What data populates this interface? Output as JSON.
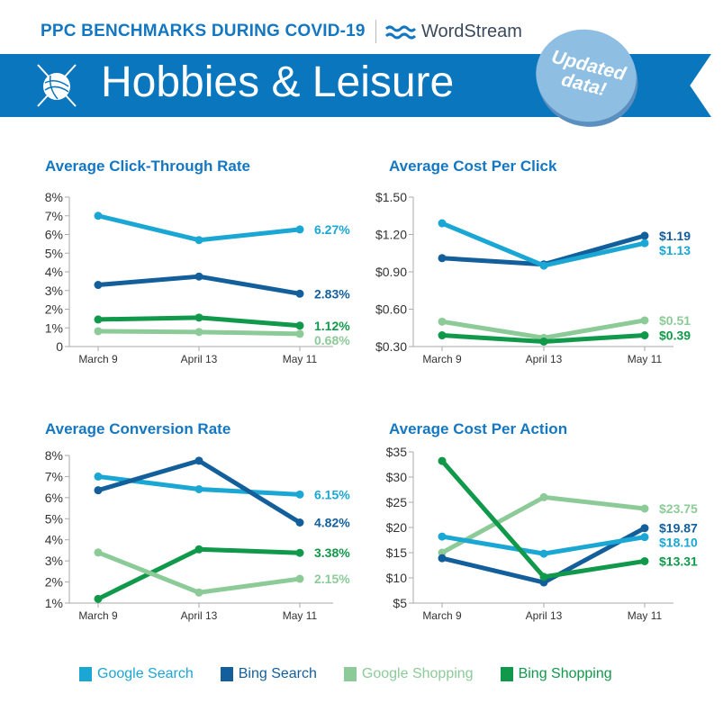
{
  "header": {
    "title": "PPC BENCHMARKS DURING COVID-19",
    "brand": "WordStream",
    "banner": "Hobbies & Leisure",
    "badge_line1": "Updated",
    "badge_line2": "data!"
  },
  "colors": {
    "google_search": "#1aa7d4",
    "bing_search": "#135f9b",
    "google_shopping": "#8ccb98",
    "bing_shopping": "#10994a",
    "accent": "#1477c2",
    "banner": "#0a76be"
  },
  "legend": [
    {
      "name": "Google Search",
      "color": "#1aa7d4"
    },
    {
      "name": "Bing Search",
      "color": "#135f9b"
    },
    {
      "name": "Google Shopping",
      "color": "#8ccb98"
    },
    {
      "name": "Bing Shopping",
      "color": "#10994a"
    }
  ],
  "chart_data": [
    {
      "type": "line",
      "title": "Average Click-Through Rate",
      "categories": [
        "March 9",
        "April 13",
        "May 11"
      ],
      "ylim": [
        0,
        8
      ],
      "yticks": [
        0,
        1,
        2,
        3,
        4,
        5,
        6,
        7,
        8
      ],
      "ytick_labels": [
        "0",
        "1%",
        "2%",
        "3%",
        "4%",
        "5%",
        "6%",
        "7%",
        "8%"
      ],
      "series": [
        {
          "name": "Google Search",
          "values": [
            7.0,
            5.7,
            6.27
          ],
          "end_label": "6.27%"
        },
        {
          "name": "Bing Search",
          "values": [
            3.3,
            3.75,
            2.83
          ],
          "end_label": "2.83%"
        },
        {
          "name": "Bing Shopping",
          "values": [
            1.45,
            1.55,
            1.12
          ],
          "end_label": "1.12%"
        },
        {
          "name": "Google Shopping",
          "values": [
            0.82,
            0.78,
            0.68
          ],
          "end_label": "0.68%"
        }
      ]
    },
    {
      "type": "line",
      "title": "Average Cost Per Click",
      "categories": [
        "March 9",
        "April 13",
        "May 11"
      ],
      "ylim": [
        0.3,
        1.5
      ],
      "yticks": [
        0.3,
        0.6,
        0.9,
        1.2,
        1.5
      ],
      "ytick_labels": [
        "$0.30",
        "$0.60",
        "$0.90",
        "$1.20",
        "$1.50"
      ],
      "series": [
        {
          "name": "Bing Search",
          "values": [
            1.01,
            0.96,
            1.19
          ],
          "end_label": "$1.19"
        },
        {
          "name": "Google Search",
          "values": [
            1.29,
            0.95,
            1.13
          ],
          "end_label": "$1.13"
        },
        {
          "name": "Google Shopping",
          "values": [
            0.5,
            0.37,
            0.51
          ],
          "end_label": "$0.51"
        },
        {
          "name": "Bing Shopping",
          "values": [
            0.39,
            0.34,
            0.39
          ],
          "end_label": "$0.39"
        }
      ]
    },
    {
      "type": "line",
      "title": "Average Conversion Rate",
      "categories": [
        "March 9",
        "April 13",
        "May 11"
      ],
      "ylim": [
        1,
        8
      ],
      "yticks": [
        1,
        2,
        3,
        4,
        5,
        6,
        7,
        8
      ],
      "ytick_labels": [
        "1%",
        "2%",
        "3%",
        "4%",
        "5%",
        "6%",
        "7%",
        "8%"
      ],
      "series": [
        {
          "name": "Google Search",
          "values": [
            7.0,
            6.4,
            6.15
          ],
          "end_label": "6.15%"
        },
        {
          "name": "Bing Search",
          "values": [
            6.35,
            7.75,
            4.82
          ],
          "end_label": "4.82%"
        },
        {
          "name": "Bing Shopping",
          "values": [
            1.2,
            3.55,
            3.38
          ],
          "end_label": "3.38%"
        },
        {
          "name": "Google Shopping",
          "values": [
            3.4,
            1.5,
            2.15
          ],
          "end_label": "2.15%"
        }
      ]
    },
    {
      "type": "line",
      "title": "Average Cost Per Action",
      "categories": [
        "March 9",
        "April 13",
        "May 11"
      ],
      "ylim": [
        5,
        35
      ],
      "yticks": [
        5,
        10,
        15,
        20,
        25,
        30,
        35
      ],
      "ytick_labels": [
        "$5",
        "$10",
        "$15",
        "$20",
        "$25",
        "$30",
        "$35"
      ],
      "series": [
        {
          "name": "Google Shopping",
          "values": [
            15.0,
            26.0,
            23.75
          ],
          "end_label": "$23.75"
        },
        {
          "name": "Bing Search",
          "values": [
            13.9,
            9.1,
            19.87
          ],
          "end_label": "$19.87"
        },
        {
          "name": "Google Search",
          "values": [
            18.2,
            14.8,
            18.1
          ],
          "end_label": "$18.10"
        },
        {
          "name": "Bing Shopping",
          "values": [
            33.2,
            10.2,
            13.31
          ],
          "end_label": "$13.31"
        }
      ]
    }
  ]
}
